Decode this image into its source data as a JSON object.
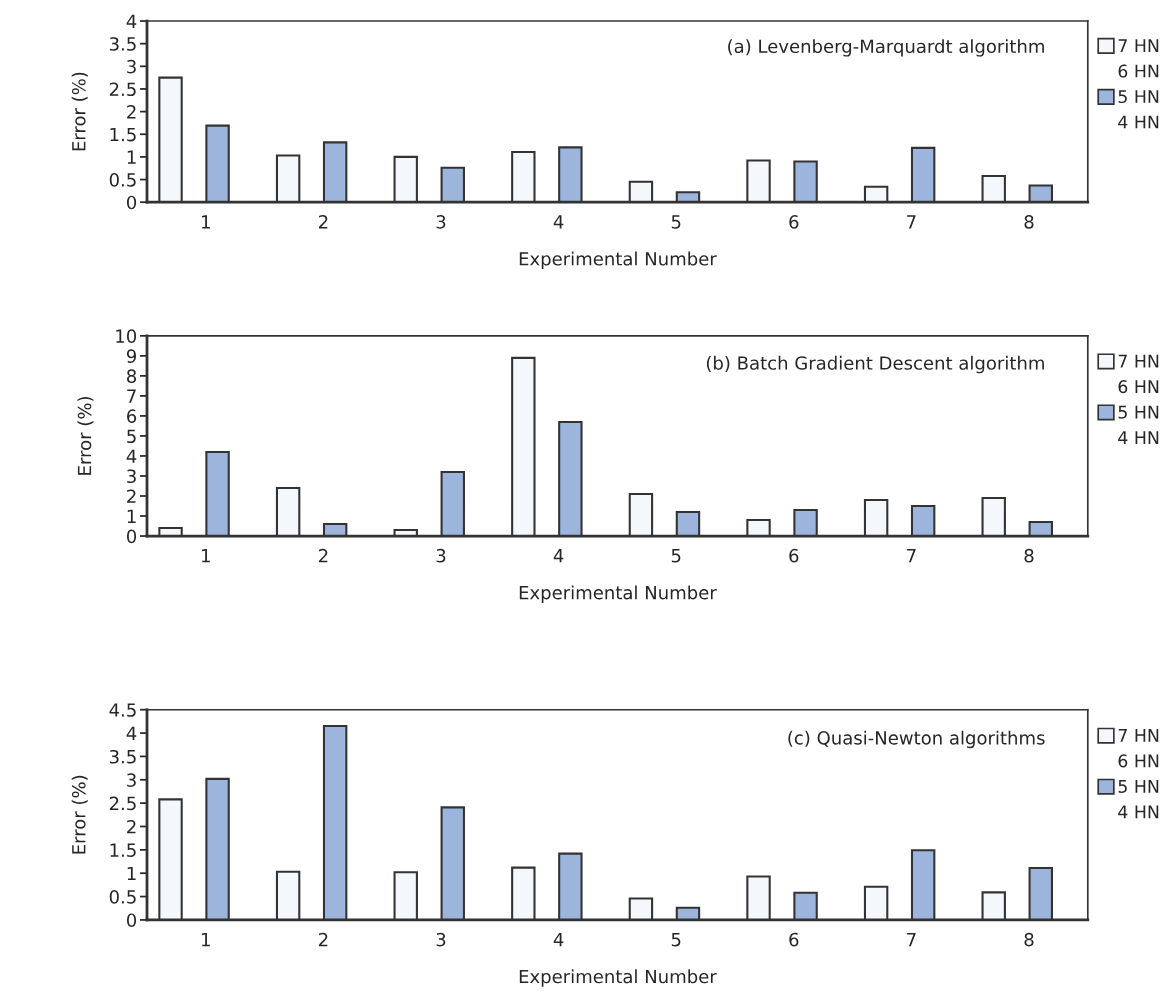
{
  "chart_data": [
    {
      "type": "bar",
      "title": "(a) Levenberg-Marquardt algorithm",
      "xlabel": "Experimental Number",
      "ylabel": "Error (%)",
      "categories": [
        "1",
        "2",
        "3",
        "4",
        "5",
        "6",
        "7",
        "8"
      ],
      "ylim": [
        0,
        4
      ],
      "yticks": [
        0,
        0.5,
        1,
        1.5,
        2,
        2.5,
        3,
        3.5,
        4
      ],
      "legend": "right",
      "grid": false,
      "series": [
        {
          "name": "7 HN",
          "color": "#f4f7fc",
          "values": [
            2.75,
            1.03,
            1.0,
            1.11,
            0.45,
            0.92,
            0.34,
            0.58
          ]
        },
        {
          "name": "6 HN",
          "values": [
            null,
            null,
            null,
            null,
            null,
            null,
            null,
            null
          ]
        },
        {
          "name": "5 HN",
          "color": "#9db5dc",
          "values": [
            1.69,
            1.32,
            0.76,
            1.21,
            0.22,
            0.9,
            1.2,
            0.37
          ]
        },
        {
          "name": "4 HN",
          "values": [
            null,
            null,
            null,
            null,
            null,
            null,
            null,
            null
          ]
        }
      ]
    },
    {
      "type": "bar",
      "title": "(b) Batch Gradient Descent algorithm",
      "xlabel": "Experimental Number",
      "ylabel": "Error (%)",
      "categories": [
        "1",
        "2",
        "3",
        "4",
        "5",
        "6",
        "7",
        "8"
      ],
      "ylim": [
        0,
        10
      ],
      "yticks": [
        0,
        1,
        2,
        3,
        4,
        5,
        6,
        7,
        8,
        9,
        10
      ],
      "legend": "right",
      "grid": false,
      "series": [
        {
          "name": "7 HN",
          "color": "#f4f7fc",
          "values": [
            0.4,
            2.4,
            0.3,
            8.9,
            2.1,
            0.8,
            1.8,
            1.9
          ]
        },
        {
          "name": "6 HN",
          "values": [
            null,
            null,
            null,
            null,
            null,
            null,
            null,
            null
          ]
        },
        {
          "name": "5 HN",
          "color": "#9db5dc",
          "values": [
            4.2,
            0.6,
            3.2,
            5.7,
            1.2,
            1.3,
            1.5,
            0.7
          ]
        },
        {
          "name": "4 HN",
          "values": [
            null,
            null,
            null,
            null,
            null,
            null,
            null,
            null
          ]
        }
      ]
    },
    {
      "type": "bar",
      "title": "(c) Quasi-Newton algorithms",
      "xlabel": "Experimental Number",
      "ylabel": "Error (%)",
      "categories": [
        "1",
        "2",
        "3",
        "4",
        "5",
        "6",
        "7",
        "8"
      ],
      "ylim": [
        0,
        4.5
      ],
      "yticks": [
        0,
        0.5,
        1,
        1.5,
        2,
        2.5,
        3,
        3.5,
        4,
        4.5
      ],
      "legend": "right",
      "grid": false,
      "series": [
        {
          "name": "7 HN",
          "color": "#f4f7fc",
          "values": [
            2.58,
            1.03,
            1.02,
            1.12,
            0.46,
            0.93,
            0.71,
            0.59
          ]
        },
        {
          "name": "6 HN",
          "values": [
            null,
            null,
            null,
            null,
            null,
            null,
            null,
            null
          ]
        },
        {
          "name": "5 HN",
          "color": "#9db5dc",
          "values": [
            3.02,
            4.15,
            2.41,
            1.42,
            0.26,
            0.58,
            1.49,
            1.11
          ]
        },
        {
          "name": "4 HN",
          "values": [
            null,
            null,
            null,
            null,
            null,
            null,
            null,
            null
          ]
        }
      ]
    }
  ]
}
